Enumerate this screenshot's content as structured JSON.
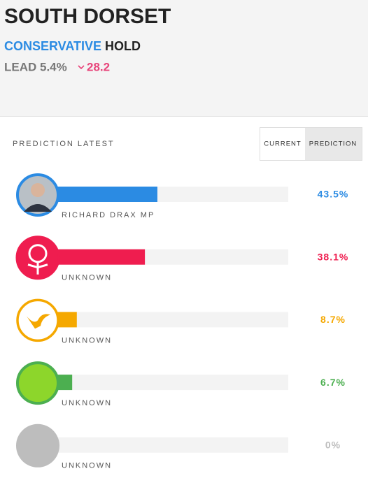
{
  "header": {
    "title": "SOUTH DORSET",
    "party": "CONSERVATIVE",
    "result": "HOLD",
    "lead": "LEAD 5.4%",
    "change": "28.2"
  },
  "section_title": "PREDICTION LATEST",
  "tabs": [
    "CURRENT",
    "PREDICTION"
  ],
  "rows": [
    {
      "name": "RICHARD DRAX MP",
      "value": 43.5,
      "value_label": "43.5%",
      "color": "#2b8be3"
    },
    {
      "name": "UNKNOWN",
      "value": 38.1,
      "value_label": "38.1%",
      "color": "#ef1d4f"
    },
    {
      "name": "UNKNOWN",
      "value": 8.7,
      "value_label": "8.7%",
      "color": "#f5a800"
    },
    {
      "name": "UNKNOWN",
      "value": 6.7,
      "value_label": "6.7%",
      "color": "#4caf50"
    },
    {
      "name": "UNKNOWN",
      "value": 0,
      "value_label": "0%",
      "color": "#bdbdbd"
    }
  ]
}
